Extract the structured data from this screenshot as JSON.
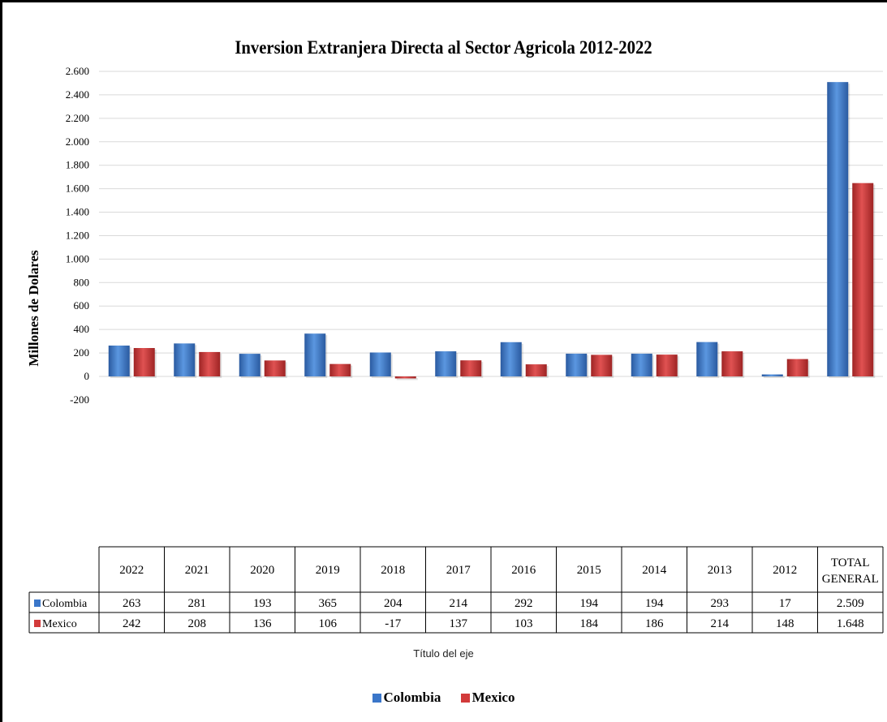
{
  "chart_data": {
    "type": "bar",
    "title": "Inversion Extranjera Directa al Sector Agricola 2012-2022",
    "ylabel": "Millones de Dolares",
    "xlabel": "Título del eje",
    "ylim": [
      -200,
      2600
    ],
    "yticks": [
      -200,
      0,
      200,
      400,
      600,
      800,
      1000,
      1200,
      1400,
      1600,
      1800,
      2000,
      2200,
      2400,
      2600
    ],
    "ytick_labels": [
      "-200",
      "0",
      "200",
      "400",
      "600",
      "800",
      "1.000",
      "1.200",
      "1.400",
      "1.600",
      "1.800",
      "2.000",
      "2.200",
      "2.400",
      "2.600"
    ],
    "categories": [
      "2022",
      "2021",
      "2020",
      "2019",
      "2018",
      "2017",
      "2016",
      "2015",
      "2014",
      "2013",
      "2012",
      "TOTAL GENERAL"
    ],
    "category_lines": [
      [
        "2022"
      ],
      [
        "2021"
      ],
      [
        "2020"
      ],
      [
        "2019"
      ],
      [
        "2018"
      ],
      [
        "2017"
      ],
      [
        "2016"
      ],
      [
        "2015"
      ],
      [
        "2014"
      ],
      [
        "2013"
      ],
      [
        "2012"
      ],
      [
        "TOTAL",
        "GENERAL"
      ]
    ],
    "series": [
      {
        "name": "Colombia",
        "color": "#3a76c9",
        "values": [
          263,
          281,
          193,
          365,
          204,
          214,
          292,
          194,
          194,
          293,
          17,
          2509
        ],
        "labels": [
          "263",
          "281",
          "193",
          "365",
          "204",
          "214",
          "292",
          "194",
          "194",
          "293",
          "17",
          "2.509"
        ]
      },
      {
        "name": "Mexico",
        "color": "#d23a3a",
        "values": [
          242,
          208,
          136,
          106,
          -17,
          137,
          103,
          184,
          186,
          214,
          148,
          1648
        ],
        "labels": [
          "242",
          "208",
          "136",
          "106",
          "-17",
          "137",
          "103",
          "184",
          "186",
          "214",
          "148",
          "1.648"
        ]
      }
    ],
    "grid": true,
    "data_table": true,
    "legend_position": "bottom"
  }
}
